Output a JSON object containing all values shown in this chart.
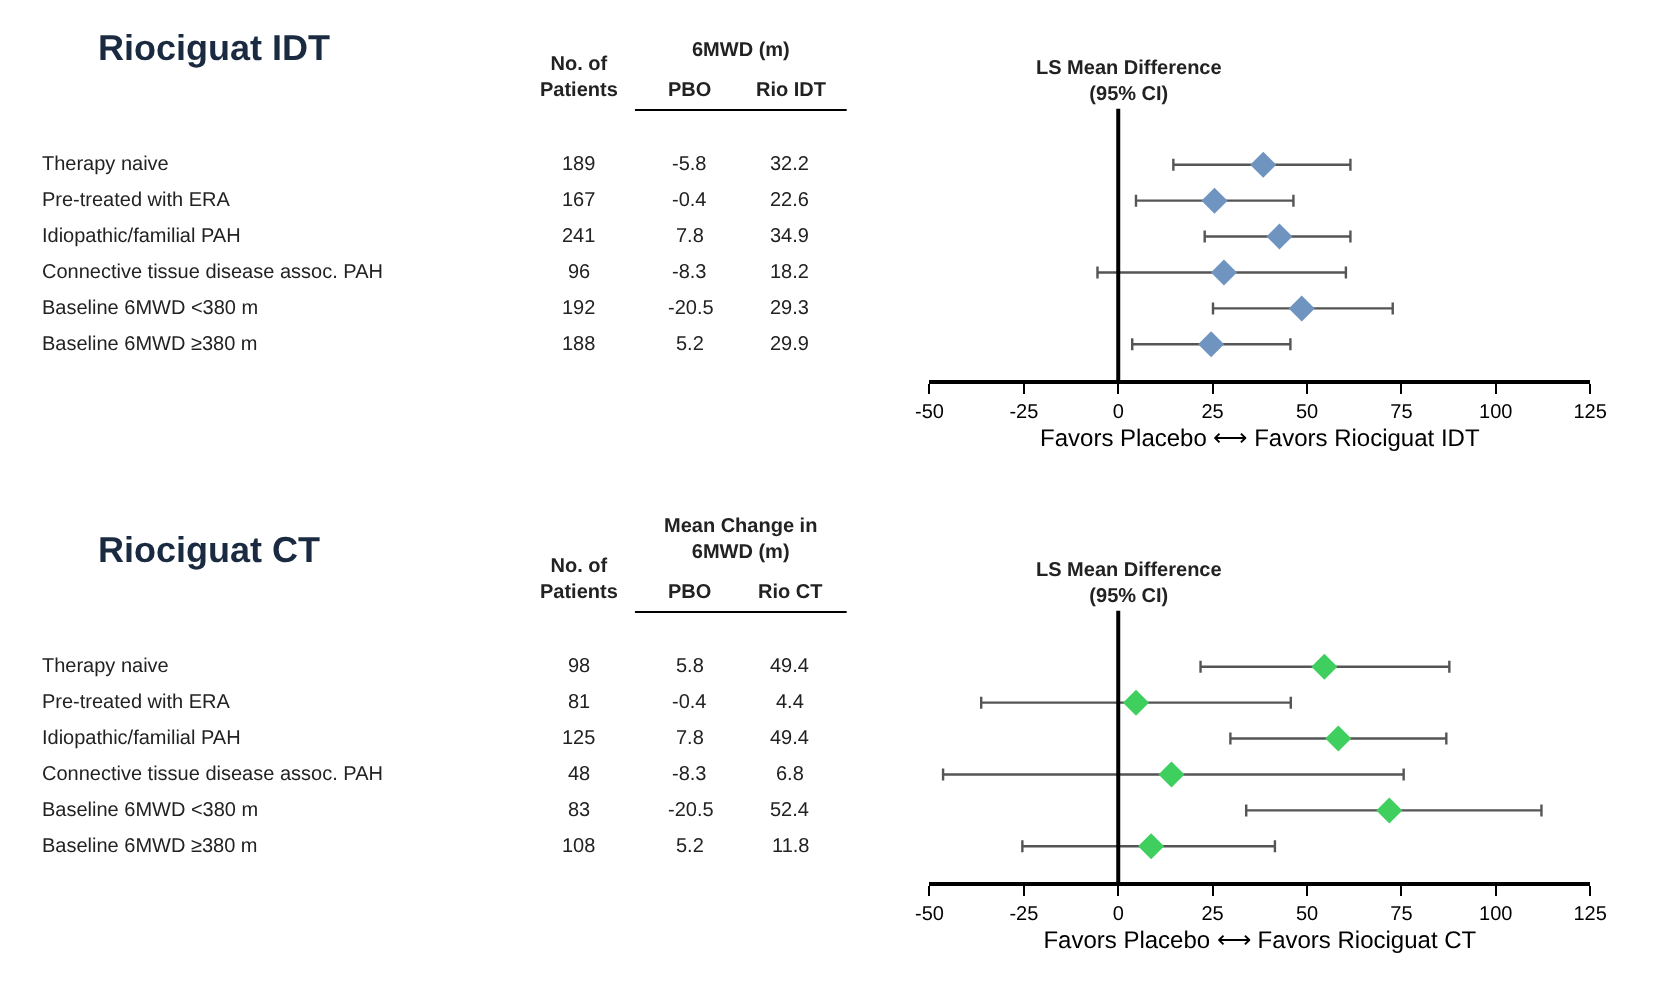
{
  "chart_data": [
    {
      "type": "scatter",
      "orientation": "horizontal",
      "subtitle": "LS Mean Difference\n(95% CI)",
      "xlabel": "Favors Placebo ⟷ Favors Riociguat IDT",
      "categories": [
        "Therapy naive",
        "Pre-treated with ERA",
        "Idiopathic/familial PAH",
        "Connective tissue disease assoc. PAH",
        "Baseline 6MWD <380 m",
        "Baseline 6MWD ≥380 m"
      ],
      "color": "#6f94c0",
      "values": [
        38.4,
        25.5,
        42.7,
        28,
        48.6,
        24.6
      ],
      "errors": [
        [
          14.6,
          61.5
        ],
        [
          4.7,
          46.4
        ],
        [
          22.9,
          61.5
        ],
        [
          -5.5,
          60.3
        ],
        [
          25.1,
          72.7
        ],
        [
          3.7,
          45.6
        ]
      ],
      "xlim": [
        -50,
        125
      ],
      "xticks": [
        -50,
        -25,
        0,
        25,
        50,
        75,
        100,
        125
      ],
      "ref_lines": [
        {
          "axis": "x",
          "value": 0,
          "color": "#000000"
        }
      ],
      "marker": "diamond",
      "tick_labels": "x",
      "annotations": [
        "Riociguat IDT",
        "No. of\nPatients",
        "6MWD (m)",
        "PBO",
        "Rio IDT",
        "189",
        "-5.8",
        "32.2",
        "167",
        "-0.4",
        "22.6",
        "241",
        "7.8",
        "34.9",
        "96",
        "-8.3",
        "18.2",
        "192",
        "-20.5",
        "29.3",
        "188",
        "5.2",
        "29.9"
      ]
    },
    {
      "type": "scatter",
      "orientation": "horizontal",
      "subtitle": "LS Mean Difference\n(95% CI)",
      "xlabel": "Favors Placebo ⟷ Favors Riociguat CT",
      "categories": [
        "Therapy naive",
        "Pre-treated with ERA",
        "Idiopathic/familial PAH",
        "Connective tissue disease assoc. PAH",
        "Baseline 6MWD <380 m",
        "Baseline 6MWD ≥380 m"
      ],
      "color": "#3ecf5e",
      "values": [
        54.6,
        4.7,
        58.3,
        14.1,
        71.8,
        8.7
      ],
      "errors": [
        [
          21.8,
          87.7
        ],
        [
          -36.3,
          45.7
        ],
        [
          29.7,
          86.9
        ],
        [
          -46.4,
          75.6
        ],
        [
          33.9,
          112.1
        ],
        [
          -25.4,
          41.5
        ]
      ],
      "xlim": [
        -50,
        125
      ],
      "xticks": [
        -50,
        -25,
        0,
        25,
        50,
        75,
        100,
        125
      ],
      "ref_lines": [
        {
          "axis": "x",
          "value": 0,
          "color": "#000000"
        }
      ],
      "marker": "diamond",
      "tick_labels": "x",
      "annotations": [
        "Riociguat CT",
        "No. of\nPatients",
        "Mean Change in\n6MWD (m)",
        "PBO",
        "Rio CT",
        "98",
        "5.8",
        "49.4",
        "81",
        "-0.4",
        "4.4",
        "125",
        "7.8",
        "49.4",
        "48",
        "-8.3",
        "6.8",
        "83",
        "-20.5",
        "52.4",
        "108",
        "5.2",
        "11.8"
      ]
    }
  ]
}
